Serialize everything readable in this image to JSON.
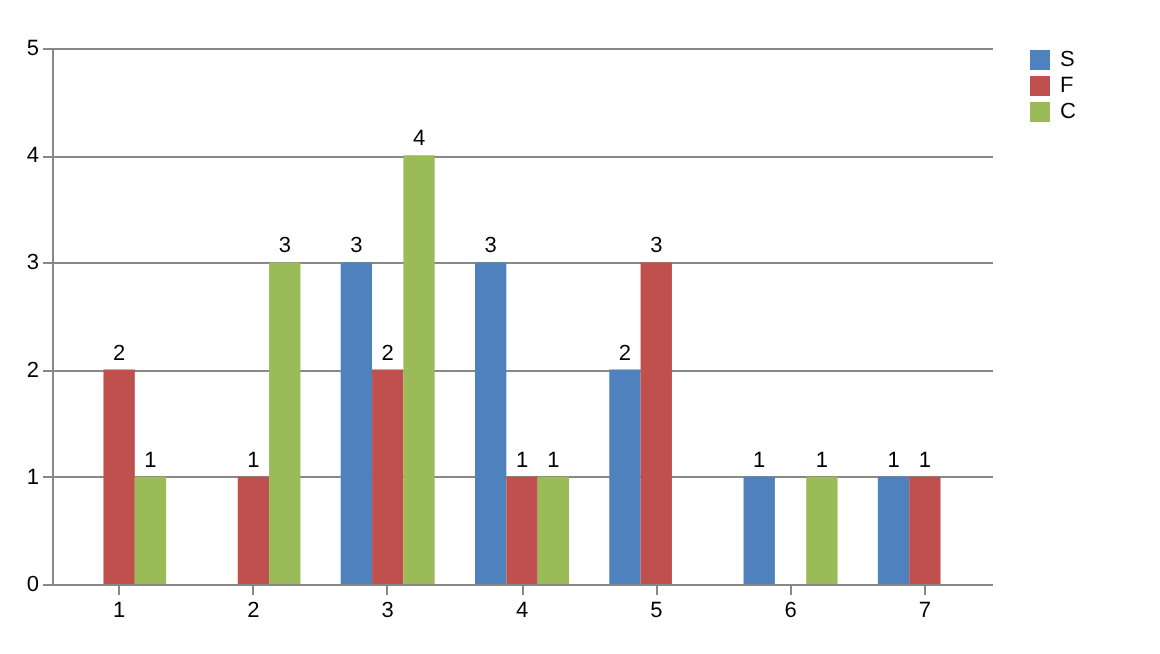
{
  "chart_data": {
    "type": "bar",
    "categories": [
      "1",
      "2",
      "3",
      "4",
      "5",
      "6",
      "7"
    ],
    "series": [
      {
        "name": "S",
        "color": "#4f81bd",
        "values": [
          null,
          null,
          3,
          3,
          2,
          1,
          1
        ]
      },
      {
        "name": "F",
        "color": "#c0504d",
        "values": [
          2,
          1,
          2,
          1,
          3,
          null,
          1
        ]
      },
      {
        "name": "C",
        "color": "#9bbb59",
        "values": [
          1,
          3,
          4,
          1,
          null,
          1,
          null
        ]
      }
    ],
    "ylim": [
      0,
      5
    ],
    "yticks": [
      0,
      1,
      2,
      3,
      4,
      5
    ],
    "grid": "y",
    "legend": "right",
    "data_labels": true
  }
}
